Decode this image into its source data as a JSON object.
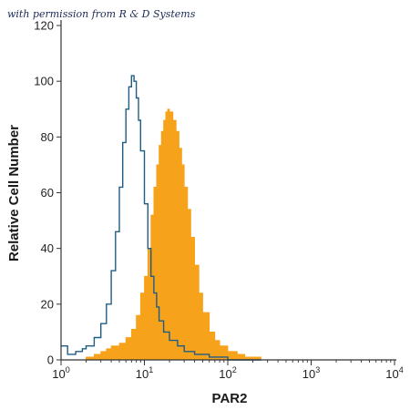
{
  "watermark": "with permission from R & D Systems",
  "chart_data": {
    "type": "area",
    "xlabel": "PAR2",
    "ylabel": "Relative Cell Number",
    "xscale": "log",
    "xlim": [
      1,
      10000
    ],
    "ylim": [
      0,
      120
    ],
    "x_ticks": [
      {
        "value": 1,
        "base": "10",
        "exp": "0"
      },
      {
        "value": 10,
        "base": "10",
        "exp": "1"
      },
      {
        "value": 100,
        "base": "10",
        "exp": "2"
      },
      {
        "value": 1000,
        "base": "10",
        "exp": "3"
      },
      {
        "value": 10000,
        "base": "10",
        "exp": "4"
      }
    ],
    "y_ticks": [
      "0",
      "20",
      "40",
      "60",
      "80",
      "100",
      "120"
    ],
    "colors": {
      "stained": "#f7a21b",
      "control": "#1f5d86"
    },
    "series": [
      {
        "style": "filled",
        "x": [
          1.6,
          2,
          2.5,
          3,
          3.5,
          4,
          5,
          6,
          7,
          8,
          9,
          10,
          11,
          12,
          13,
          14,
          15,
          16,
          17,
          18,
          19,
          20,
          22,
          24,
          26,
          28,
          30,
          33,
          36,
          40,
          45,
          50,
          60,
          70,
          80,
          100,
          130,
          160,
          200,
          250
        ],
        "values": [
          0,
          1,
          2,
          3,
          4,
          5,
          6,
          8,
          11,
          16,
          24,
          30,
          40,
          52,
          62,
          70,
          77,
          82,
          86,
          89,
          90,
          89,
          86,
          82,
          76,
          70,
          62,
          54,
          44,
          34,
          24,
          17,
          10,
          7,
          5,
          3,
          2,
          1,
          1,
          0
        ]
      },
      {
        "style": "outline",
        "x": [
          1,
          1.2,
          1.5,
          1.8,
          2,
          2.5,
          3,
          3.5,
          4,
          4.5,
          5,
          5.5,
          6,
          6.5,
          7,
          7.5,
          8,
          8.5,
          9,
          10,
          11,
          12,
          13,
          14,
          15,
          17,
          20,
          25,
          30,
          40,
          60,
          100,
          150,
          250
        ],
        "values": [
          5,
          2,
          3,
          4,
          5,
          8,
          13,
          20,
          32,
          46,
          62,
          78,
          90,
          98,
          102,
          100,
          94,
          86,
          75,
          56,
          40,
          30,
          24,
          19,
          14,
          10,
          7,
          5,
          3,
          2,
          1,
          0,
          0,
          0
        ]
      }
    ]
  }
}
